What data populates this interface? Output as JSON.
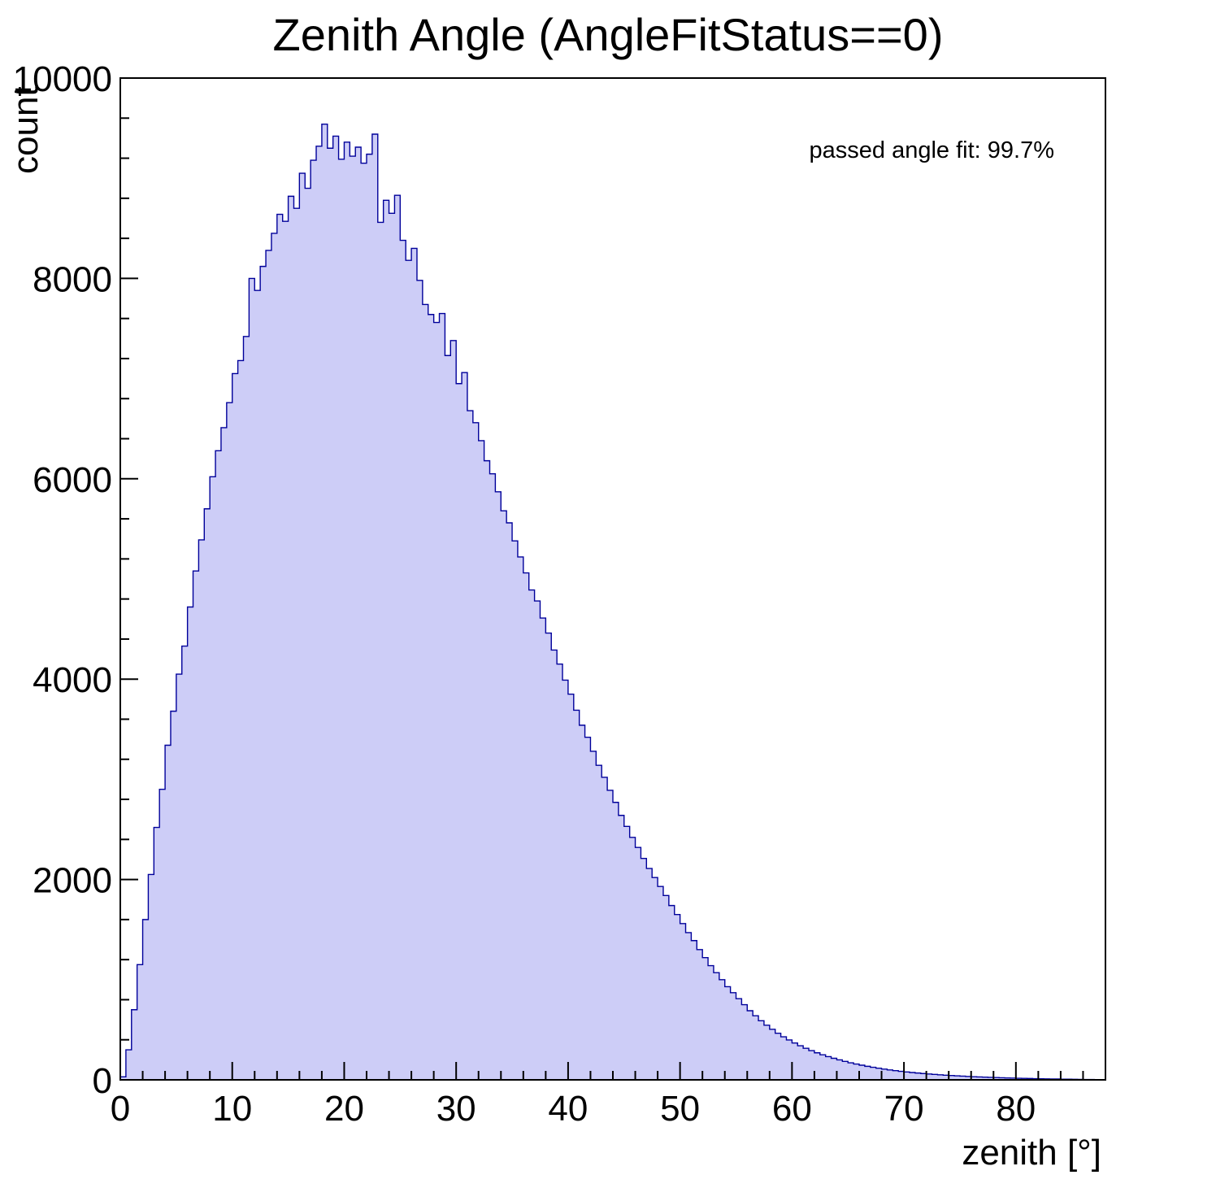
{
  "chart_data": {
    "type": "bar",
    "title": "Zenith Angle (AngleFitStatus==0)",
    "xlabel": "zenith [°]",
    "ylabel": "count",
    "annotation": "passed angle fit: 99.7%",
    "xlim": [
      0,
      88
    ],
    "ylim": [
      0,
      10000
    ],
    "x_major_ticks": [
      0,
      10,
      20,
      30,
      40,
      50,
      60,
      70,
      80
    ],
    "x_minor_step": 2,
    "y_major_ticks": [
      0,
      2000,
      4000,
      6000,
      8000,
      10000
    ],
    "y_minor_step": 400,
    "x_start": 0,
    "bin_width": 0.5,
    "values": [
      30,
      300,
      700,
      1150,
      1600,
      2050,
      2520,
      2900,
      3340,
      3680,
      4050,
      4330,
      4720,
      5080,
      5390,
      5700,
      6020,
      6280,
      6510,
      6760,
      7050,
      7180,
      7420,
      8000,
      7880,
      8120,
      8280,
      8450,
      8640,
      8570,
      8820,
      8700,
      9050,
      8900,
      9180,
      9320,
      9540,
      9300,
      9420,
      9190,
      9360,
      9220,
      9310,
      9150,
      9240,
      9440,
      8560,
      8780,
      8650,
      8830,
      8380,
      8180,
      8300,
      7980,
      7740,
      7640,
      7560,
      7650,
      7230,
      7380,
      6950,
      7060,
      6680,
      6560,
      6380,
      6180,
      6050,
      5870,
      5680,
      5560,
      5380,
      5220,
      5060,
      4890,
      4780,
      4610,
      4460,
      4290,
      4150,
      3990,
      3850,
      3690,
      3540,
      3420,
      3280,
      3140,
      3020,
      2890,
      2770,
      2640,
      2530,
      2420,
      2320,
      2210,
      2110,
      2020,
      1930,
      1840,
      1740,
      1650,
      1560,
      1470,
      1390,
      1300,
      1220,
      1140,
      1070,
      1000,
      930,
      870,
      810,
      750,
      690,
      640,
      590,
      545,
      505,
      465,
      430,
      398,
      368,
      340,
      315,
      292,
      270,
      250,
      232,
      215,
      199,
      184,
      170,
      158,
      146,
      135,
      125,
      116,
      107,
      99,
      92,
      85,
      79,
      73,
      68,
      63,
      58,
      54,
      50,
      46,
      43,
      40,
      37,
      34,
      31,
      29,
      27,
      25,
      23,
      21,
      19,
      18,
      16,
      15,
      14,
      12,
      11,
      10,
      9,
      8,
      7,
      6,
      5,
      4,
      3,
      3,
      2,
      2
    ],
    "colors": {
      "fill": "#cdcdf7",
      "stroke": "#00009a",
      "frame": "#000000",
      "text": "#000000"
    },
    "legend_position": "none",
    "grid": false
  }
}
